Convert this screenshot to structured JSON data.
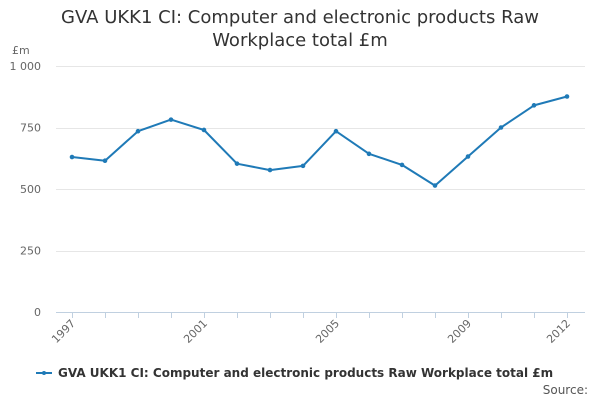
{
  "chart_data": {
    "type": "line",
    "title": "GVA UKK1 CI: Computer and electronic products Raw Workplace total £m",
    "xlabel": "",
    "ylabel": "£m",
    "x": [
      1997,
      1998,
      1999,
      2000,
      2001,
      2002,
      2003,
      2004,
      2005,
      2006,
      2007,
      2008,
      2009,
      2010,
      2011,
      2012
    ],
    "series": [
      {
        "name": "GVA UKK1 CI: Computer and electronic products Raw Workplace total £m",
        "values": [
          630,
          615,
          735,
          782,
          740,
          603,
          577,
          594,
          735,
          643,
          598,
          514,
          632,
          750,
          840,
          876
        ]
      }
    ],
    "ylim": [
      0,
      1000
    ],
    "xlim": [
      1997,
      2012
    ],
    "y_ticks": [
      0,
      250,
      500,
      750,
      1000
    ],
    "y_tick_labels": [
      "0",
      "250",
      "500",
      "750",
      "1 000"
    ],
    "x_tick_labels": [
      "1997",
      "2001",
      "2005",
      "2009",
      "2012"
    ],
    "grid": "horizontal",
    "legend_position": "bottom-left",
    "color": "#1f7ab7"
  },
  "source_label": "Source:"
}
